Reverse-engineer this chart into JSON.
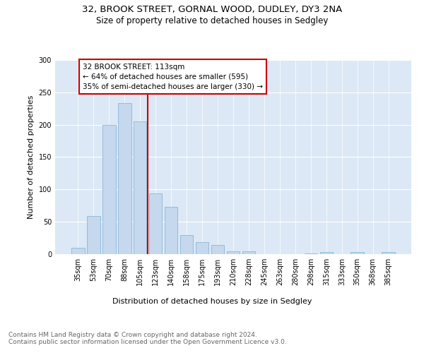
{
  "title_line1": "32, BROOK STREET, GORNAL WOOD, DUDLEY, DY3 2NA",
  "title_line2": "Size of property relative to detached houses in Sedgley",
  "xlabel": "Distribution of detached houses by size in Sedgley",
  "ylabel": "Number of detached properties",
  "bar_labels": [
    "35sqm",
    "53sqm",
    "70sqm",
    "88sqm",
    "105sqm",
    "123sqm",
    "140sqm",
    "158sqm",
    "175sqm",
    "193sqm",
    "210sqm",
    "228sqm",
    "245sqm",
    "263sqm",
    "280sqm",
    "298sqm",
    "315sqm",
    "333sqm",
    "350sqm",
    "368sqm",
    "385sqm"
  ],
  "bar_values": [
    10,
    59,
    200,
    233,
    205,
    94,
    73,
    29,
    19,
    14,
    4,
    4,
    0,
    0,
    0,
    1,
    3,
    0,
    3,
    0,
    3
  ],
  "bar_color": "#c5d8ee",
  "bar_edge_color": "#7aafd4",
  "background_color": "#dce8f5",
  "vline_x": 4.5,
  "vline_color": "#cc0000",
  "annotation_text": "32 BROOK STREET: 113sqm\n← 64% of detached houses are smaller (595)\n35% of semi-detached houses are larger (330) →",
  "annotation_box_color": "#cc0000",
  "ylim": [
    0,
    300
  ],
  "yticks": [
    0,
    50,
    100,
    150,
    200,
    250,
    300
  ],
  "footer_text": "Contains HM Land Registry data © Crown copyright and database right 2024.\nContains public sector information licensed under the Open Government Licence v3.0.",
  "title_fontsize": 9.5,
  "subtitle_fontsize": 8.5,
  "axis_label_fontsize": 8,
  "tick_fontsize": 7,
  "annotation_fontsize": 7.5,
  "footer_fontsize": 6.5
}
